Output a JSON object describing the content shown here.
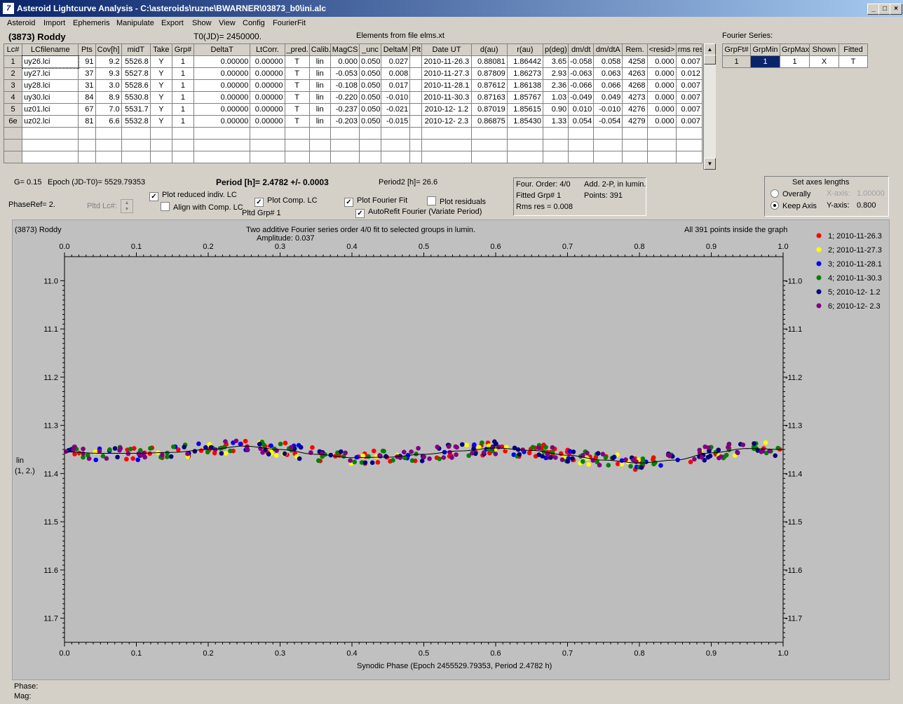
{
  "window": {
    "title": "Asteroid Lightcurve Analysis - C:\\asteroids\\ruzne\\BWARNER\\03873_b0\\ini.alc",
    "icon": "app-icon",
    "buttons": [
      "_",
      "□",
      "×"
    ]
  },
  "menu": [
    "Asteroid",
    "Import",
    "Ephemeris",
    "Manipulate",
    "Export",
    "Show",
    "View",
    "Config",
    "FourierFit"
  ],
  "header": {
    "asteroid": "(3873) Roddy",
    "t0": "T0(JD)= 2450000.",
    "elements": "Elements from file elms.xt",
    "fourier_title": "Fourier Series:"
  },
  "table": {
    "columns": [
      "Lc#",
      "LCfilename",
      "Pts",
      "Cov[h]",
      "midT",
      "Take",
      "Grp#",
      "DeltaT",
      "LtCorr.",
      "_pred.",
      "Calib.",
      "MagCS",
      "_unc",
      "DeltaM",
      "Plt",
      "Date UT",
      "d(au)",
      "r(au)",
      "p(deg)",
      "dm/dt",
      "dm/dtA",
      "Rem.",
      "<resid>",
      "rms res"
    ],
    "rows": [
      [
        "1",
        "uy26.lci",
        "91",
        "9.2",
        "5526.8",
        "Y",
        "1",
        "0.00000",
        "0.00000",
        "T",
        "lin",
        "0.000",
        "0.050",
        "0.027",
        "",
        "2010-11-26.3",
        "0.88081",
        "1.86442",
        "3.65",
        "-0.058",
        "0.058",
        "4258",
        "0.000",
        "0.007"
      ],
      [
        "2",
        "uy27.lci",
        "37",
        "9.3",
        "5527.8",
        "Y",
        "1",
        "0.00000",
        "0.00000",
        "T",
        "lin",
        "-0.053",
        "0.050",
        "0.008",
        "",
        "2010-11-27.3",
        "0.87809",
        "1.86273",
        "2.93",
        "-0.063",
        "0.063",
        "4263",
        "0.000",
        "0.012"
      ],
      [
        "3",
        "uy28.lci",
        "31",
        "3.0",
        "5528.6",
        "Y",
        "1",
        "0.00000",
        "0.00000",
        "T",
        "lin",
        "-0.108",
        "0.050",
        "0.017",
        "",
        "2010-11-28.1",
        "0.87612",
        "1.86138",
        "2.36",
        "-0.066",
        "0.066",
        "4268",
        "0.000",
        "0.007"
      ],
      [
        "4",
        "uy30.lci",
        "84",
        "8.9",
        "5530.8",
        "Y",
        "1",
        "0.00000",
        "0.00000",
        "T",
        "lin",
        "-0.220",
        "0.050",
        "-0.010",
        "",
        "2010-11-30.3",
        "0.87163",
        "1.85767",
        "1.03",
        "-0.049",
        "0.049",
        "4273",
        "0.000",
        "0.007"
      ],
      [
        "5",
        "uz01.lci",
        "67",
        "7.0",
        "5531.7",
        "Y",
        "1",
        "0.00000",
        "0.00000",
        "T",
        "lin",
        "-0.237",
        "0.050",
        "-0.021",
        "",
        "2010-12- 1.2",
        "0.87019",
        "1.85615",
        "0.90",
        "0.010",
        "-0.010",
        "4276",
        "0.000",
        "0.007"
      ],
      [
        "6e",
        "uz02.lci",
        "81",
        "6.6",
        "5532.8",
        "Y",
        "1",
        "0.00000",
        "0.00000",
        "T",
        "lin",
        "-0.203",
        "0.050",
        "-0.015",
        "",
        "2010-12- 2.3",
        "0.86875",
        "1.85430",
        "1.33",
        "0.054",
        "-0.054",
        "4279",
        "0.000",
        "0.007"
      ]
    ]
  },
  "fourier_table": {
    "columns": [
      "GrpFt#",
      "GrpMin",
      "GrpMax",
      "Shown",
      "Fitted"
    ],
    "row": [
      "1",
      "1",
      "1",
      "X",
      "T"
    ]
  },
  "info": {
    "g": "G= 0.15",
    "epoch": "Epoch (JD-T0)= 5529.79353",
    "period": "Period [h]= 2.4782 +/- 0.0003",
    "period2": "Period2 [h]= 26.6",
    "phaseref": "PhaseRef= 2.",
    "pltd_lc": "Pltd Lc#:",
    "pltd_grp": "Pltd Grp#  1",
    "cb_reduced": "Plot reduced indiv. LC",
    "cb_align": "Align with Comp. LC",
    "cb_comp": "Plot Comp. LC",
    "cb_fourier": "Plot Fourier Fit",
    "cb_residuals": "Plot residuals",
    "cb_autorefit": "AutoRefit Fourier (Variate Period)",
    "four_order": "Four. Order:  4/0",
    "add2p": "Add. 2-P, in lumin.",
    "fitted_grp": "Fitted Grp# 1",
    "points": "Points: 391",
    "rms": "Rms res     = 0.008",
    "axes_title": "Set axes lengths",
    "overally": "Overally",
    "keep_axis": "Keep Axis",
    "xaxis_label": "X-axis:",
    "xaxis_val": "1.00000",
    "yaxis_label": "Y-axis:",
    "yaxis_val": "0.800"
  },
  "plot": {
    "name": "(3873) Roddy",
    "title": "Two additive Fourier series order 4/0 fit to selected groups in lumin.",
    "amplitude": "Amplitude: 0.037",
    "inside": "All 391 points inside the graph",
    "xlabel": "Synodic Phase (Epoch 2455529.79353, Period 2.4782 h)",
    "ylabel1": "lin",
    "ylabel2": "(1, 2.)"
  },
  "chart_data": {
    "type": "scatter",
    "xlim": [
      0.0,
      1.0
    ],
    "ylim": [
      11.75,
      10.95
    ],
    "y_inverted": true,
    "xticks": [
      "0.0",
      "0.1",
      "0.2",
      "0.3",
      "0.4",
      "0.5",
      "0.6",
      "0.7",
      "0.8",
      "0.9",
      "1.0"
    ],
    "yticks": [
      "11.0",
      "11.1",
      "11.2",
      "11.3",
      "11.4",
      "11.5",
      "11.6",
      "11.7"
    ],
    "series": [
      {
        "name": "1; 2010-11-26.3",
        "color": "#ff0000",
        "count": 91
      },
      {
        "name": "2; 2010-11-27.3",
        "color": "#ffff00",
        "count": 37
      },
      {
        "name": "3; 2010-11-28.1",
        "color": "#0000ff",
        "count": 31
      },
      {
        "name": "4; 2010-11-30.3",
        "color": "#008000",
        "count": 84
      },
      {
        "name": "5; 2010-12- 1.2",
        "color": "#000080",
        "count": 67
      },
      {
        "name": "6; 2010-12- 2.3",
        "color": "#800080",
        "count": 81
      }
    ],
    "fit_curve": {
      "x": [
        0.0,
        0.05,
        0.1,
        0.15,
        0.2,
        0.25,
        0.3,
        0.35,
        0.4,
        0.45,
        0.5,
        0.55,
        0.6,
        0.65,
        0.7,
        0.75,
        0.8,
        0.85,
        0.9,
        0.95,
        1.0
      ],
      "y": [
        11.355,
        11.358,
        11.358,
        11.356,
        11.35,
        11.343,
        11.35,
        11.36,
        11.367,
        11.366,
        11.36,
        11.353,
        11.347,
        11.352,
        11.362,
        11.372,
        11.378,
        11.372,
        11.357,
        11.348,
        11.35
      ]
    },
    "legend": "top-right"
  },
  "status": {
    "phase": "Phase:",
    "mag": "Mag:"
  }
}
